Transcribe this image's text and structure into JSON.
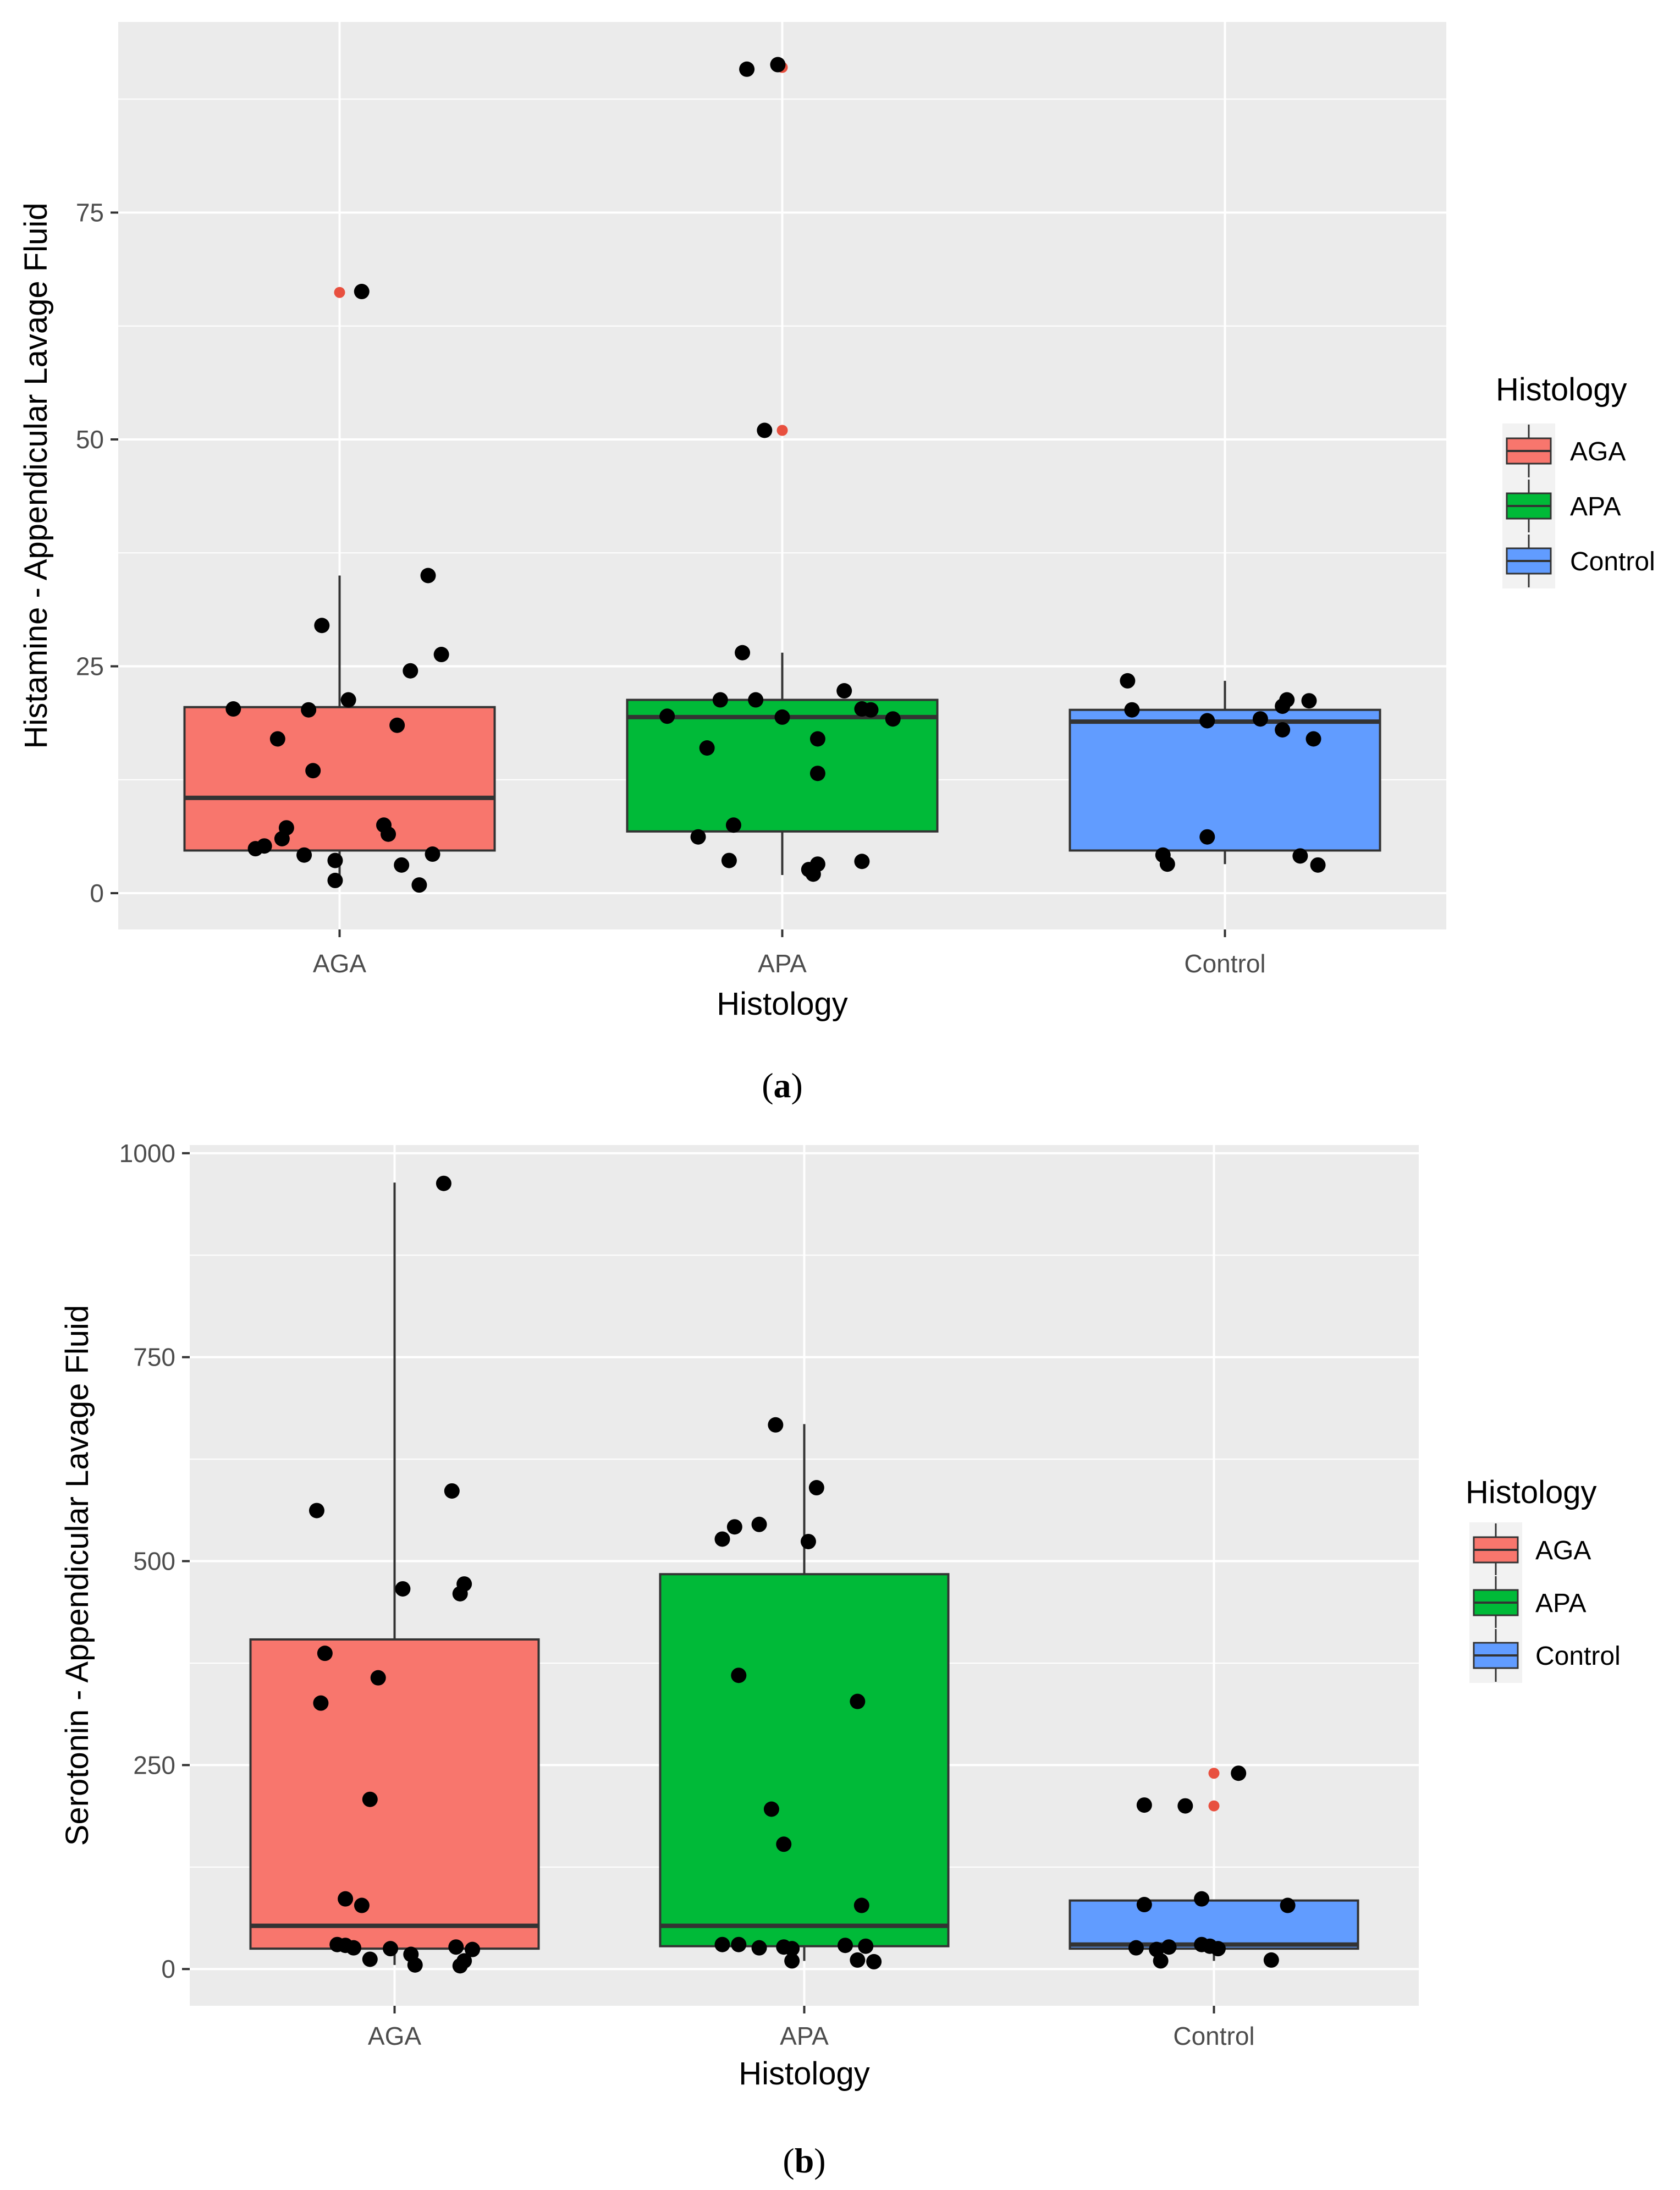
{
  "chart_data": [
    {
      "type": "box",
      "caption": {
        "open": "(",
        "letter": "a",
        "close": ")"
      },
      "xlabel": "Histology",
      "ylabel": "Histamine - Appendicular Lavage Fluid",
      "ylim": [
        -4,
        96
      ],
      "yticks": [
        0,
        25,
        50,
        75
      ],
      "categories": [
        "AGA",
        "APA",
        "Control"
      ],
      "legend": {
        "title": "Histology",
        "position": "right",
        "labels": [
          "AGA",
          "APA",
          "Control"
        ]
      },
      "colors": {
        "AGA": "#F8766D",
        "APA": "#00BA38",
        "Control": "#619CFF",
        "outlier": "#e8503f",
        "point": "#000000",
        "panel": "#ebebeb",
        "grid": "#ffffff"
      },
      "boxes": [
        {
          "category": "AGA",
          "lower_whisker": 0.8,
          "q1": 4.7,
          "median": 10.5,
          "q3": 20.5,
          "upper_whisker": 35.0,
          "outliers": [
            66.2
          ]
        },
        {
          "category": "APA",
          "lower_whisker": 2.0,
          "q1": 6.8,
          "median": 19.4,
          "q3": 21.3,
          "upper_whisker": 26.5,
          "outliers": [
            51.0,
            91.0
          ]
        },
        {
          "category": "Control",
          "lower_whisker": 3.2,
          "q1": 4.7,
          "median": 18.9,
          "q3": 20.2,
          "upper_whisker": 23.4,
          "outliers": []
        }
      ],
      "points": [
        {
          "category": "AGA",
          "y": 66.3,
          "jitter": 0.05
        },
        {
          "category": "AGA",
          "y": 35.0,
          "jitter": 0.2
        },
        {
          "category": "AGA",
          "y": 29.5,
          "jitter": -0.04
        },
        {
          "category": "AGA",
          "y": 26.3,
          "jitter": 0.23
        },
        {
          "category": "AGA",
          "y": 24.5,
          "jitter": 0.16
        },
        {
          "category": "AGA",
          "y": 21.3,
          "jitter": 0.02
        },
        {
          "category": "AGA",
          "y": 20.3,
          "jitter": -0.24
        },
        {
          "category": "AGA",
          "y": 20.2,
          "jitter": -0.07
        },
        {
          "category": "AGA",
          "y": 18.5,
          "jitter": 0.13
        },
        {
          "category": "AGA",
          "y": 17.0,
          "jitter": -0.14
        },
        {
          "category": "AGA",
          "y": 13.5,
          "jitter": -0.06
        },
        {
          "category": "AGA",
          "y": 7.5,
          "jitter": 0.1
        },
        {
          "category": "AGA",
          "y": 7.2,
          "jitter": -0.12
        },
        {
          "category": "AGA",
          "y": 6.5,
          "jitter": 0.11
        },
        {
          "category": "AGA",
          "y": 6.0,
          "jitter": -0.13
        },
        {
          "category": "AGA",
          "y": 5.2,
          "jitter": -0.17
        },
        {
          "category": "AGA",
          "y": 4.9,
          "jitter": -0.19
        },
        {
          "category": "AGA",
          "y": 4.3,
          "jitter": 0.21
        },
        {
          "category": "AGA",
          "y": 4.2,
          "jitter": -0.08
        },
        {
          "category": "AGA",
          "y": 3.6,
          "jitter": -0.01
        },
        {
          "category": "AGA",
          "y": 3.1,
          "jitter": 0.14
        },
        {
          "category": "AGA",
          "y": 1.4,
          "jitter": -0.01
        },
        {
          "category": "AGA",
          "y": 0.9,
          "jitter": 0.18
        },
        {
          "category": "APA",
          "y": 91.3,
          "jitter": -0.01
        },
        {
          "category": "APA",
          "y": 90.8,
          "jitter": -0.08
        },
        {
          "category": "APA",
          "y": 51.0,
          "jitter": -0.04
        },
        {
          "category": "APA",
          "y": 26.5,
          "jitter": -0.09
        },
        {
          "category": "APA",
          "y": 22.3,
          "jitter": 0.14
        },
        {
          "category": "APA",
          "y": 21.3,
          "jitter": -0.14
        },
        {
          "category": "APA",
          "y": 21.3,
          "jitter": -0.06
        },
        {
          "category": "APA",
          "y": 20.3,
          "jitter": 0.18
        },
        {
          "category": "APA",
          "y": 20.2,
          "jitter": 0.2
        },
        {
          "category": "APA",
          "y": 19.5,
          "jitter": -0.26
        },
        {
          "category": "APA",
          "y": 19.4,
          "jitter": 0.0
        },
        {
          "category": "APA",
          "y": 19.2,
          "jitter": 0.25
        },
        {
          "category": "APA",
          "y": 17.0,
          "jitter": 0.08
        },
        {
          "category": "APA",
          "y": 16.0,
          "jitter": -0.17
        },
        {
          "category": "APA",
          "y": 13.2,
          "jitter": 0.08
        },
        {
          "category": "APA",
          "y": 7.5,
          "jitter": -0.11
        },
        {
          "category": "APA",
          "y": 6.2,
          "jitter": -0.19
        },
        {
          "category": "APA",
          "y": 3.6,
          "jitter": -0.12
        },
        {
          "category": "APA",
          "y": 3.5,
          "jitter": 0.18
        },
        {
          "category": "APA",
          "y": 3.2,
          "jitter": 0.08
        },
        {
          "category": "APA",
          "y": 2.6,
          "jitter": 0.06
        },
        {
          "category": "APA",
          "y": 2.1,
          "jitter": 0.07
        },
        {
          "category": "Control",
          "y": 23.4,
          "jitter": -0.22
        },
        {
          "category": "Control",
          "y": 21.3,
          "jitter": 0.14
        },
        {
          "category": "Control",
          "y": 21.2,
          "jitter": 0.19
        },
        {
          "category": "Control",
          "y": 20.6,
          "jitter": 0.13
        },
        {
          "category": "Control",
          "y": 20.2,
          "jitter": -0.21
        },
        {
          "category": "Control",
          "y": 19.2,
          "jitter": 0.08
        },
        {
          "category": "Control",
          "y": 19.0,
          "jitter": -0.04
        },
        {
          "category": "Control",
          "y": 18.0,
          "jitter": 0.13
        },
        {
          "category": "Control",
          "y": 17.0,
          "jitter": 0.2
        },
        {
          "category": "Control",
          "y": 6.2,
          "jitter": -0.04
        },
        {
          "category": "Control",
          "y": 4.2,
          "jitter": -0.14
        },
        {
          "category": "Control",
          "y": 4.1,
          "jitter": 0.17
        },
        {
          "category": "Control",
          "y": 3.2,
          "jitter": -0.13
        },
        {
          "category": "Control",
          "y": 3.1,
          "jitter": 0.21
        }
      ]
    },
    {
      "type": "box",
      "caption": {
        "open": "(",
        "letter": "b",
        "close": ")"
      },
      "xlabel": "Histology",
      "ylabel": "Serotonin - Appendicular Lavage Fluid",
      "ylim": [
        -45,
        1010
      ],
      "yticks": [
        0,
        250,
        500,
        750,
        1000
      ],
      "categories": [
        "AGA",
        "APA",
        "Control"
      ],
      "legend": {
        "title": "Histology",
        "position": "right",
        "labels": [
          "AGA",
          "APA",
          "Control"
        ]
      },
      "colors": {
        "AGA": "#F8766D",
        "APA": "#00BA38",
        "Control": "#619CFF",
        "outlier": "#e8503f",
        "point": "#000000",
        "panel": "#ebebeb",
        "grid": "#ffffff"
      },
      "boxes": [
        {
          "category": "AGA",
          "lower_whisker": 5,
          "q1": 25,
          "median": 53,
          "q3": 404,
          "upper_whisker": 964,
          "outliers": []
        },
        {
          "category": "APA",
          "lower_whisker": 10,
          "q1": 28,
          "median": 53,
          "q3": 484,
          "upper_whisker": 668,
          "outliers": []
        },
        {
          "category": "Control",
          "lower_whisker": 10,
          "q1": 25,
          "median": 30,
          "q3": 84,
          "upper_whisker": 84,
          "outliers": [
            200,
            240
          ]
        }
      ],
      "points": [
        {
          "category": "AGA",
          "y": 963,
          "jitter": 0.12
        },
        {
          "category": "AGA",
          "y": 586,
          "jitter": 0.14
        },
        {
          "category": "AGA",
          "y": 562,
          "jitter": -0.19
        },
        {
          "category": "AGA",
          "y": 472,
          "jitter": 0.17
        },
        {
          "category": "AGA",
          "y": 466,
          "jitter": 0.02
        },
        {
          "category": "AGA",
          "y": 460,
          "jitter": 0.16
        },
        {
          "category": "AGA",
          "y": 387,
          "jitter": -0.17
        },
        {
          "category": "AGA",
          "y": 357,
          "jitter": -0.04
        },
        {
          "category": "AGA",
          "y": 326,
          "jitter": -0.18
        },
        {
          "category": "AGA",
          "y": 208,
          "jitter": -0.06
        },
        {
          "category": "AGA",
          "y": 86,
          "jitter": -0.12
        },
        {
          "category": "AGA",
          "y": 78,
          "jitter": -0.08
        },
        {
          "category": "AGA",
          "y": 30,
          "jitter": -0.14
        },
        {
          "category": "AGA",
          "y": 29,
          "jitter": -0.12
        },
        {
          "category": "AGA",
          "y": 27,
          "jitter": 0.15
        },
        {
          "category": "AGA",
          "y": 26,
          "jitter": -0.1
        },
        {
          "category": "AGA",
          "y": 25,
          "jitter": -0.01
        },
        {
          "category": "AGA",
          "y": 24,
          "jitter": 0.19
        },
        {
          "category": "AGA",
          "y": 18,
          "jitter": 0.04
        },
        {
          "category": "AGA",
          "y": 12,
          "jitter": -0.06
        },
        {
          "category": "AGA",
          "y": 10,
          "jitter": 0.17
        },
        {
          "category": "AGA",
          "y": 5,
          "jitter": 0.05
        },
        {
          "category": "AGA",
          "y": 4,
          "jitter": 0.16
        },
        {
          "category": "APA",
          "y": 667,
          "jitter": -0.07
        },
        {
          "category": "APA",
          "y": 590,
          "jitter": 0.03
        },
        {
          "category": "APA",
          "y": 545,
          "jitter": -0.11
        },
        {
          "category": "APA",
          "y": 542,
          "jitter": -0.17
        },
        {
          "category": "APA",
          "y": 527,
          "jitter": -0.2
        },
        {
          "category": "APA",
          "y": 524,
          "jitter": 0.01
        },
        {
          "category": "APA",
          "y": 360,
          "jitter": -0.16
        },
        {
          "category": "APA",
          "y": 328,
          "jitter": 0.13
        },
        {
          "category": "APA",
          "y": 196,
          "jitter": -0.08
        },
        {
          "category": "APA",
          "y": 153,
          "jitter": -0.05
        },
        {
          "category": "APA",
          "y": 78,
          "jitter": 0.14
        },
        {
          "category": "APA",
          "y": 30,
          "jitter": -0.2
        },
        {
          "category": "APA",
          "y": 30,
          "jitter": -0.16
        },
        {
          "category": "APA",
          "y": 29,
          "jitter": 0.1
        },
        {
          "category": "APA",
          "y": 28,
          "jitter": 0.15
        },
        {
          "category": "APA",
          "y": 27,
          "jitter": -0.05
        },
        {
          "category": "APA",
          "y": 26,
          "jitter": -0.11
        },
        {
          "category": "APA",
          "y": 25,
          "jitter": -0.03
        },
        {
          "category": "APA",
          "y": 11,
          "jitter": 0.13
        },
        {
          "category": "APA",
          "y": 10,
          "jitter": -0.03
        },
        {
          "category": "APA",
          "y": 9,
          "jitter": 0.17
        },
        {
          "category": "Control",
          "y": 240,
          "jitter": 0.06
        },
        {
          "category": "Control",
          "y": 201,
          "jitter": -0.17
        },
        {
          "category": "Control",
          "y": 200,
          "jitter": -0.07
        },
        {
          "category": "Control",
          "y": 86,
          "jitter": -0.03
        },
        {
          "category": "Control",
          "y": 79,
          "jitter": -0.17
        },
        {
          "category": "Control",
          "y": 78,
          "jitter": 0.18
        },
        {
          "category": "Control",
          "y": 30,
          "jitter": -0.03
        },
        {
          "category": "Control",
          "y": 28,
          "jitter": -0.01
        },
        {
          "category": "Control",
          "y": 27,
          "jitter": -0.11
        },
        {
          "category": "Control",
          "y": 26,
          "jitter": -0.19
        },
        {
          "category": "Control",
          "y": 25,
          "jitter": 0.01
        },
        {
          "category": "Control",
          "y": 24,
          "jitter": -0.14
        },
        {
          "category": "Control",
          "y": 11,
          "jitter": 0.14
        },
        {
          "category": "Control",
          "y": 10,
          "jitter": -0.13
        }
      ]
    }
  ]
}
